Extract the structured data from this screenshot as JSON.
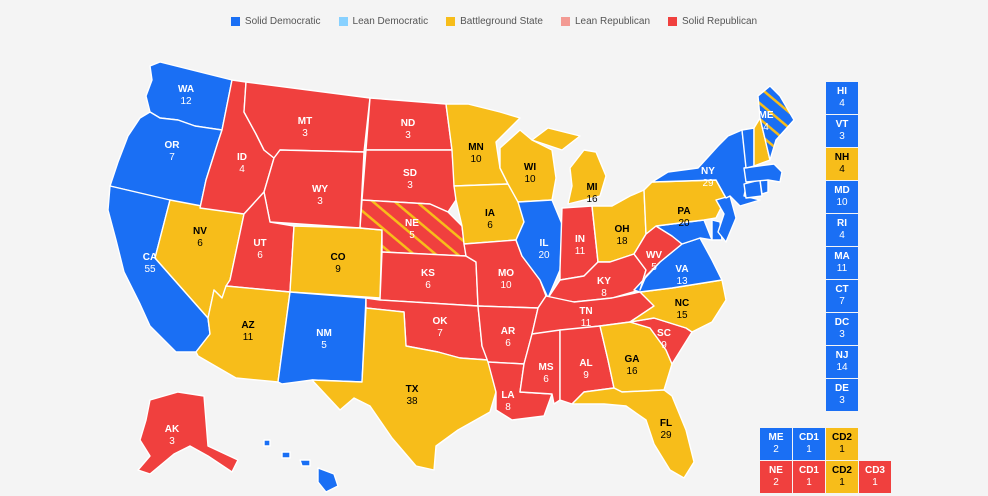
{
  "legend": [
    {
      "label": "Solid Democratic",
      "color": "#1a6ff4"
    },
    {
      "label": "Lean Democratic",
      "color": "#88d1ff"
    },
    {
      "label": "Battleground State",
      "color": "#f7bd1a"
    },
    {
      "label": "Lean Republican",
      "color": "#f39a93"
    },
    {
      "label": "Solid Republican",
      "color": "#f0403e"
    }
  ],
  "colors": {
    "D": "#1a6ff4",
    "R": "#f0403e",
    "B": "#f7bd1a"
  },
  "states": [
    {
      "abbr": "WA",
      "ev": "12",
      "rating": "D"
    },
    {
      "abbr": "OR",
      "ev": "7",
      "rating": "D"
    },
    {
      "abbr": "CA",
      "ev": "55",
      "rating": "D"
    },
    {
      "abbr": "NV",
      "ev": "6",
      "rating": "B"
    },
    {
      "abbr": "ID",
      "ev": "4",
      "rating": "R"
    },
    {
      "abbr": "MT",
      "ev": "3",
      "rating": "R"
    },
    {
      "abbr": "WY",
      "ev": "3",
      "rating": "R"
    },
    {
      "abbr": "UT",
      "ev": "6",
      "rating": "R"
    },
    {
      "abbr": "AZ",
      "ev": "11",
      "rating": "B"
    },
    {
      "abbr": "CO",
      "ev": "9",
      "rating": "B"
    },
    {
      "abbr": "NM",
      "ev": "5",
      "rating": "D"
    },
    {
      "abbr": "ND",
      "ev": "3",
      "rating": "R"
    },
    {
      "abbr": "SD",
      "ev": "3",
      "rating": "R"
    },
    {
      "abbr": "NE",
      "ev": "5",
      "rating": "R"
    },
    {
      "abbr": "KS",
      "ev": "6",
      "rating": "R"
    },
    {
      "abbr": "OK",
      "ev": "7",
      "rating": "R"
    },
    {
      "abbr": "TX",
      "ev": "38",
      "rating": "B"
    },
    {
      "abbr": "MN",
      "ev": "10",
      "rating": "B"
    },
    {
      "abbr": "IA",
      "ev": "6",
      "rating": "B"
    },
    {
      "abbr": "MO",
      "ev": "10",
      "rating": "R"
    },
    {
      "abbr": "AR",
      "ev": "6",
      "rating": "R"
    },
    {
      "abbr": "LA",
      "ev": "8",
      "rating": "R"
    },
    {
      "abbr": "WI",
      "ev": "10",
      "rating": "B"
    },
    {
      "abbr": "IL",
      "ev": "20",
      "rating": "D"
    },
    {
      "abbr": "MI",
      "ev": "16",
      "rating": "B"
    },
    {
      "abbr": "IN",
      "ev": "11",
      "rating": "R"
    },
    {
      "abbr": "OH",
      "ev": "18",
      "rating": "B"
    },
    {
      "abbr": "KY",
      "ev": "8",
      "rating": "R"
    },
    {
      "abbr": "TN",
      "ev": "11",
      "rating": "R"
    },
    {
      "abbr": "MS",
      "ev": "6",
      "rating": "R"
    },
    {
      "abbr": "AL",
      "ev": "9",
      "rating": "R"
    },
    {
      "abbr": "GA",
      "ev": "16",
      "rating": "B"
    },
    {
      "abbr": "FL",
      "ev": "29",
      "rating": "B"
    },
    {
      "abbr": "SC",
      "ev": "9",
      "rating": "R"
    },
    {
      "abbr": "NC",
      "ev": "15",
      "rating": "B"
    },
    {
      "abbr": "VA",
      "ev": "13",
      "rating": "D"
    },
    {
      "abbr": "WV",
      "ev": "5",
      "rating": "R"
    },
    {
      "abbr": "PA",
      "ev": "20",
      "rating": "B"
    },
    {
      "abbr": "NY",
      "ev": "29",
      "rating": "D"
    },
    {
      "abbr": "ME",
      "ev": "4",
      "rating": "D"
    },
    {
      "abbr": "AK",
      "ev": "3",
      "rating": "R"
    }
  ],
  "side_boxes": [
    {
      "abbr": "HI",
      "ev": "4",
      "rating": "D"
    },
    {
      "abbr": "VT",
      "ev": "3",
      "rating": "D"
    },
    {
      "abbr": "NH",
      "ev": "4",
      "rating": "B"
    },
    {
      "abbr": "MD",
      "ev": "10",
      "rating": "D"
    },
    {
      "abbr": "RI",
      "ev": "4",
      "rating": "D"
    },
    {
      "abbr": "MA",
      "ev": "11",
      "rating": "D"
    },
    {
      "abbr": "CT",
      "ev": "7",
      "rating": "D"
    },
    {
      "abbr": "DC",
      "ev": "3",
      "rating": "D"
    },
    {
      "abbr": "NJ",
      "ev": "14",
      "rating": "D"
    },
    {
      "abbr": "DE",
      "ev": "3",
      "rating": "D"
    }
  ],
  "district_boxes": [
    [
      {
        "abbr": "ME",
        "ev": "2",
        "rating": "D"
      },
      {
        "abbr": "CD1",
        "ev": "1",
        "rating": "D"
      },
      {
        "abbr": "CD2",
        "ev": "1",
        "rating": "B"
      }
    ],
    [
      {
        "abbr": "NE",
        "ev": "2",
        "rating": "R"
      },
      {
        "abbr": "CD1",
        "ev": "1",
        "rating": "R"
      },
      {
        "abbr": "CD2",
        "ev": "1",
        "rating": "B"
      },
      {
        "abbr": "CD3",
        "ev": "1",
        "rating": "R"
      }
    ]
  ]
}
